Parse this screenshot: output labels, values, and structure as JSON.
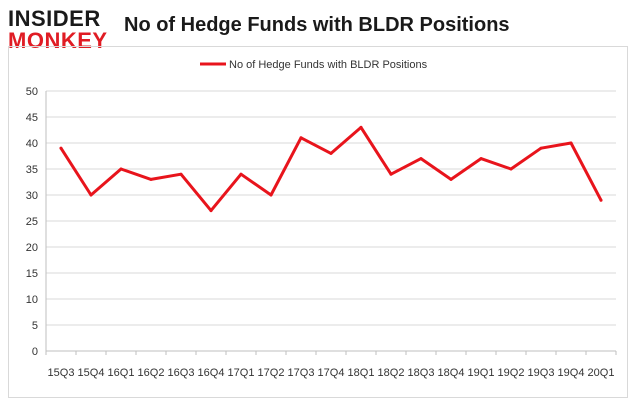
{
  "logo": {
    "line1": "INSIDER",
    "line2": "MONKEY"
  },
  "colors": {
    "series": "#e8141c",
    "grid": "#d9d9d9",
    "text": "#333333",
    "logo_dark": "#1a1a1a",
    "logo_red": "#e01c24"
  },
  "chart_data": {
    "type": "line",
    "title": "No of Hedge Funds with BLDR Positions",
    "xlabel": "",
    "ylabel": "",
    "ylim": [
      0,
      50
    ],
    "yticks": [
      0,
      5,
      10,
      15,
      20,
      25,
      30,
      35,
      40,
      45,
      50
    ],
    "grid": true,
    "legend": "top-center",
    "categories": [
      "15Q3",
      "15Q4",
      "16Q1",
      "16Q2",
      "16Q3",
      "16Q4",
      "17Q1",
      "17Q2",
      "17Q3",
      "17Q4",
      "18Q1",
      "18Q2",
      "18Q3",
      "18Q4",
      "19Q1",
      "19Q2",
      "19Q3",
      "19Q4",
      "20Q1"
    ],
    "series": [
      {
        "name": "No of Hedge Funds with BLDR Positions",
        "values": [
          39,
          30,
          35,
          33,
          34,
          27,
          34,
          30,
          41,
          38,
          43,
          34,
          37,
          33,
          37,
          35,
          39,
          40,
          29
        ]
      }
    ]
  }
}
